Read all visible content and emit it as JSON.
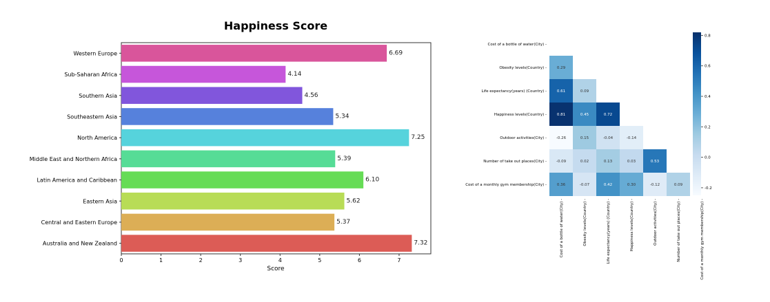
{
  "chart_data": [
    {
      "type": "bar",
      "orientation": "horizontal",
      "title": "Happiness Score",
      "xlabel": "Score",
      "ylabel": "",
      "xlim": [
        0,
        7.8
      ],
      "xticks": [
        0,
        1,
        2,
        3,
        4,
        5,
        6,
        7
      ],
      "grid": false,
      "categories": [
        "Western Europe",
        "Sub-Saharan Africa",
        "Southern Asia",
        "Southeastern Asia",
        "North America",
        "Middle East and Northern Africa",
        "Latin America and Caribbean",
        "Eastern Asia",
        "Central and Eastern Europe",
        "Australia and New Zealand"
      ],
      "values": [
        6.69,
        4.14,
        4.56,
        5.34,
        7.25,
        5.39,
        6.1,
        5.62,
        5.37,
        7.32
      ],
      "value_labels": [
        "6.69",
        "4.14",
        "4.56",
        "5.34",
        "7.25",
        "5.39",
        "6.10",
        "5.62",
        "5.37",
        "7.32"
      ],
      "colors": [
        "#d9559b",
        "#c656da",
        "#8156dc",
        "#5681dc",
        "#56d3dc",
        "#56dc96",
        "#66dc56",
        "#b8dc56",
        "#dcae56",
        "#dc5c56"
      ]
    },
    {
      "type": "heatmap",
      "title": "",
      "mask": "upper-triangle",
      "labels": [
        "Cost of a bottle of water(City)",
        "Obesity levels(Country)",
        "Life expectancy(years) (Country)",
        "Happiness levels(Country)",
        "Outdoor activities(City)",
        "Number of take out places(City)",
        "Cost of a monthly gym membership(City)"
      ],
      "values": [
        [],
        [
          0.29
        ],
        [
          0.61,
          0.09
        ],
        [
          0.81,
          0.45,
          0.72
        ],
        [
          -0.26,
          0.15,
          -0.04,
          -0.14
        ],
        [
          -0.09,
          0.02,
          0.13,
          0.03,
          0.53
        ],
        [
          0.36,
          -0.07,
          0.42,
          0.3,
          -0.12,
          0.09
        ]
      ],
      "value_labels": [
        [],
        [
          "0.29"
        ],
        [
          "0.61",
          "0.09"
        ],
        [
          "0.81",
          "0.45",
          "0.72"
        ],
        [
          "-0.26",
          "0.15",
          "-0.04",
          "-0.14"
        ],
        [
          "-0.09",
          "0.02",
          "0.13",
          "0.03",
          "0.53"
        ],
        [
          "0.36",
          "-0.07",
          "0.42",
          "0.30",
          "-0.12",
          "0.09"
        ]
      ],
      "colorbar": {
        "colormap": "Blues",
        "range": [
          -0.25,
          0.82
        ],
        "ticks": [
          0.8,
          0.6,
          0.4,
          0.2,
          0.0,
          -0.2
        ],
        "tick_labels": [
          "0.8",
          "0.6",
          "0.4",
          "0.2",
          "0.0",
          "-0.2"
        ]
      }
    }
  ]
}
